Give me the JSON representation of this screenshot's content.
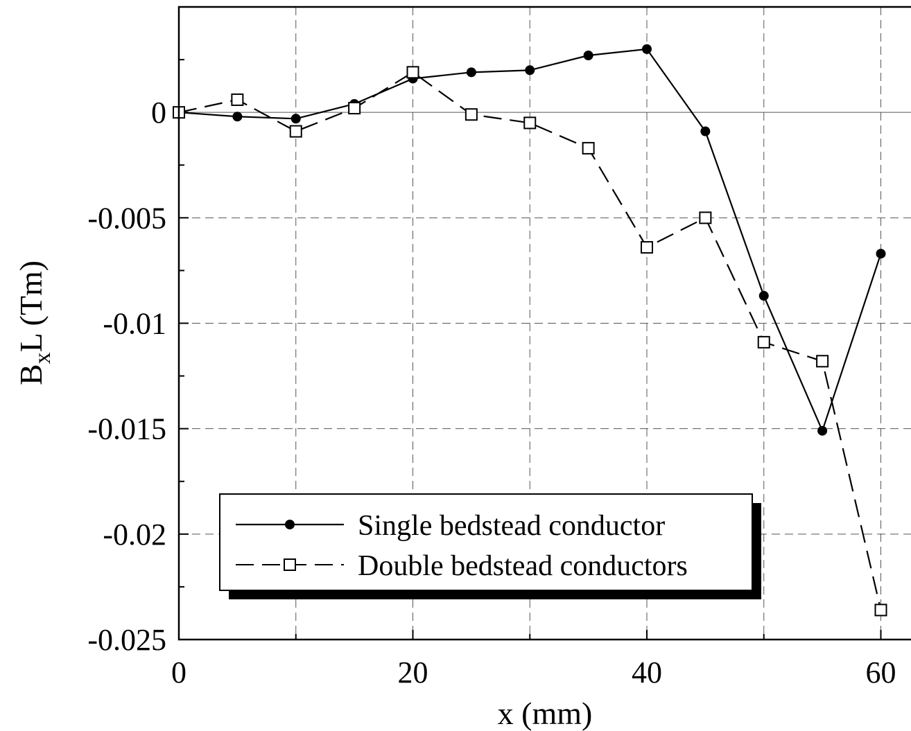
{
  "chart_data": {
    "type": "line",
    "xlabel": "x (mm)",
    "ylabel": {
      "main": "B",
      "sub": "x",
      "rest": "L (Tm)"
    },
    "xlim": [
      0,
      64
    ],
    "ylim": [
      -0.025,
      0.005
    ],
    "x_ticks": [
      0,
      20,
      40,
      60
    ],
    "x_tick_labels": [
      "0",
      "20",
      "40",
      "60"
    ],
    "y_ticks": [
      0,
      -0.005,
      -0.01,
      -0.015,
      -0.02,
      -0.025
    ],
    "y_tick_labels": [
      "0",
      "-0.005",
      "-0.01",
      "-0.015",
      "-0.02",
      "-0.025"
    ],
    "grid": true,
    "legend_position": "bottom-left",
    "series": [
      {
        "name": "Single bedstead conductor",
        "marker": "filled-circle",
        "line_style": "solid",
        "color": "#000000",
        "x": [
          0,
          5,
          10,
          15,
          20,
          25,
          30,
          35,
          40,
          45,
          50,
          55,
          60
        ],
        "y": [
          0.0,
          -0.0002,
          -0.0003,
          0.0004,
          0.0016,
          0.0019,
          0.002,
          0.0027,
          0.003,
          -0.0009,
          -0.0087,
          -0.0151,
          -0.0067
        ]
      },
      {
        "name": "Double bedstead conductors",
        "marker": "open-square",
        "line_style": "dashed",
        "color": "#000000",
        "x": [
          0,
          5,
          10,
          15,
          20,
          25,
          30,
          35,
          40,
          45,
          50,
          55,
          60
        ],
        "y": [
          0.0,
          0.0006,
          -0.0009,
          0.0002,
          0.0019,
          -0.0001,
          -0.0005,
          -0.0017,
          -0.0064,
          -0.005,
          -0.0109,
          -0.0118,
          -0.0236
        ]
      }
    ]
  }
}
